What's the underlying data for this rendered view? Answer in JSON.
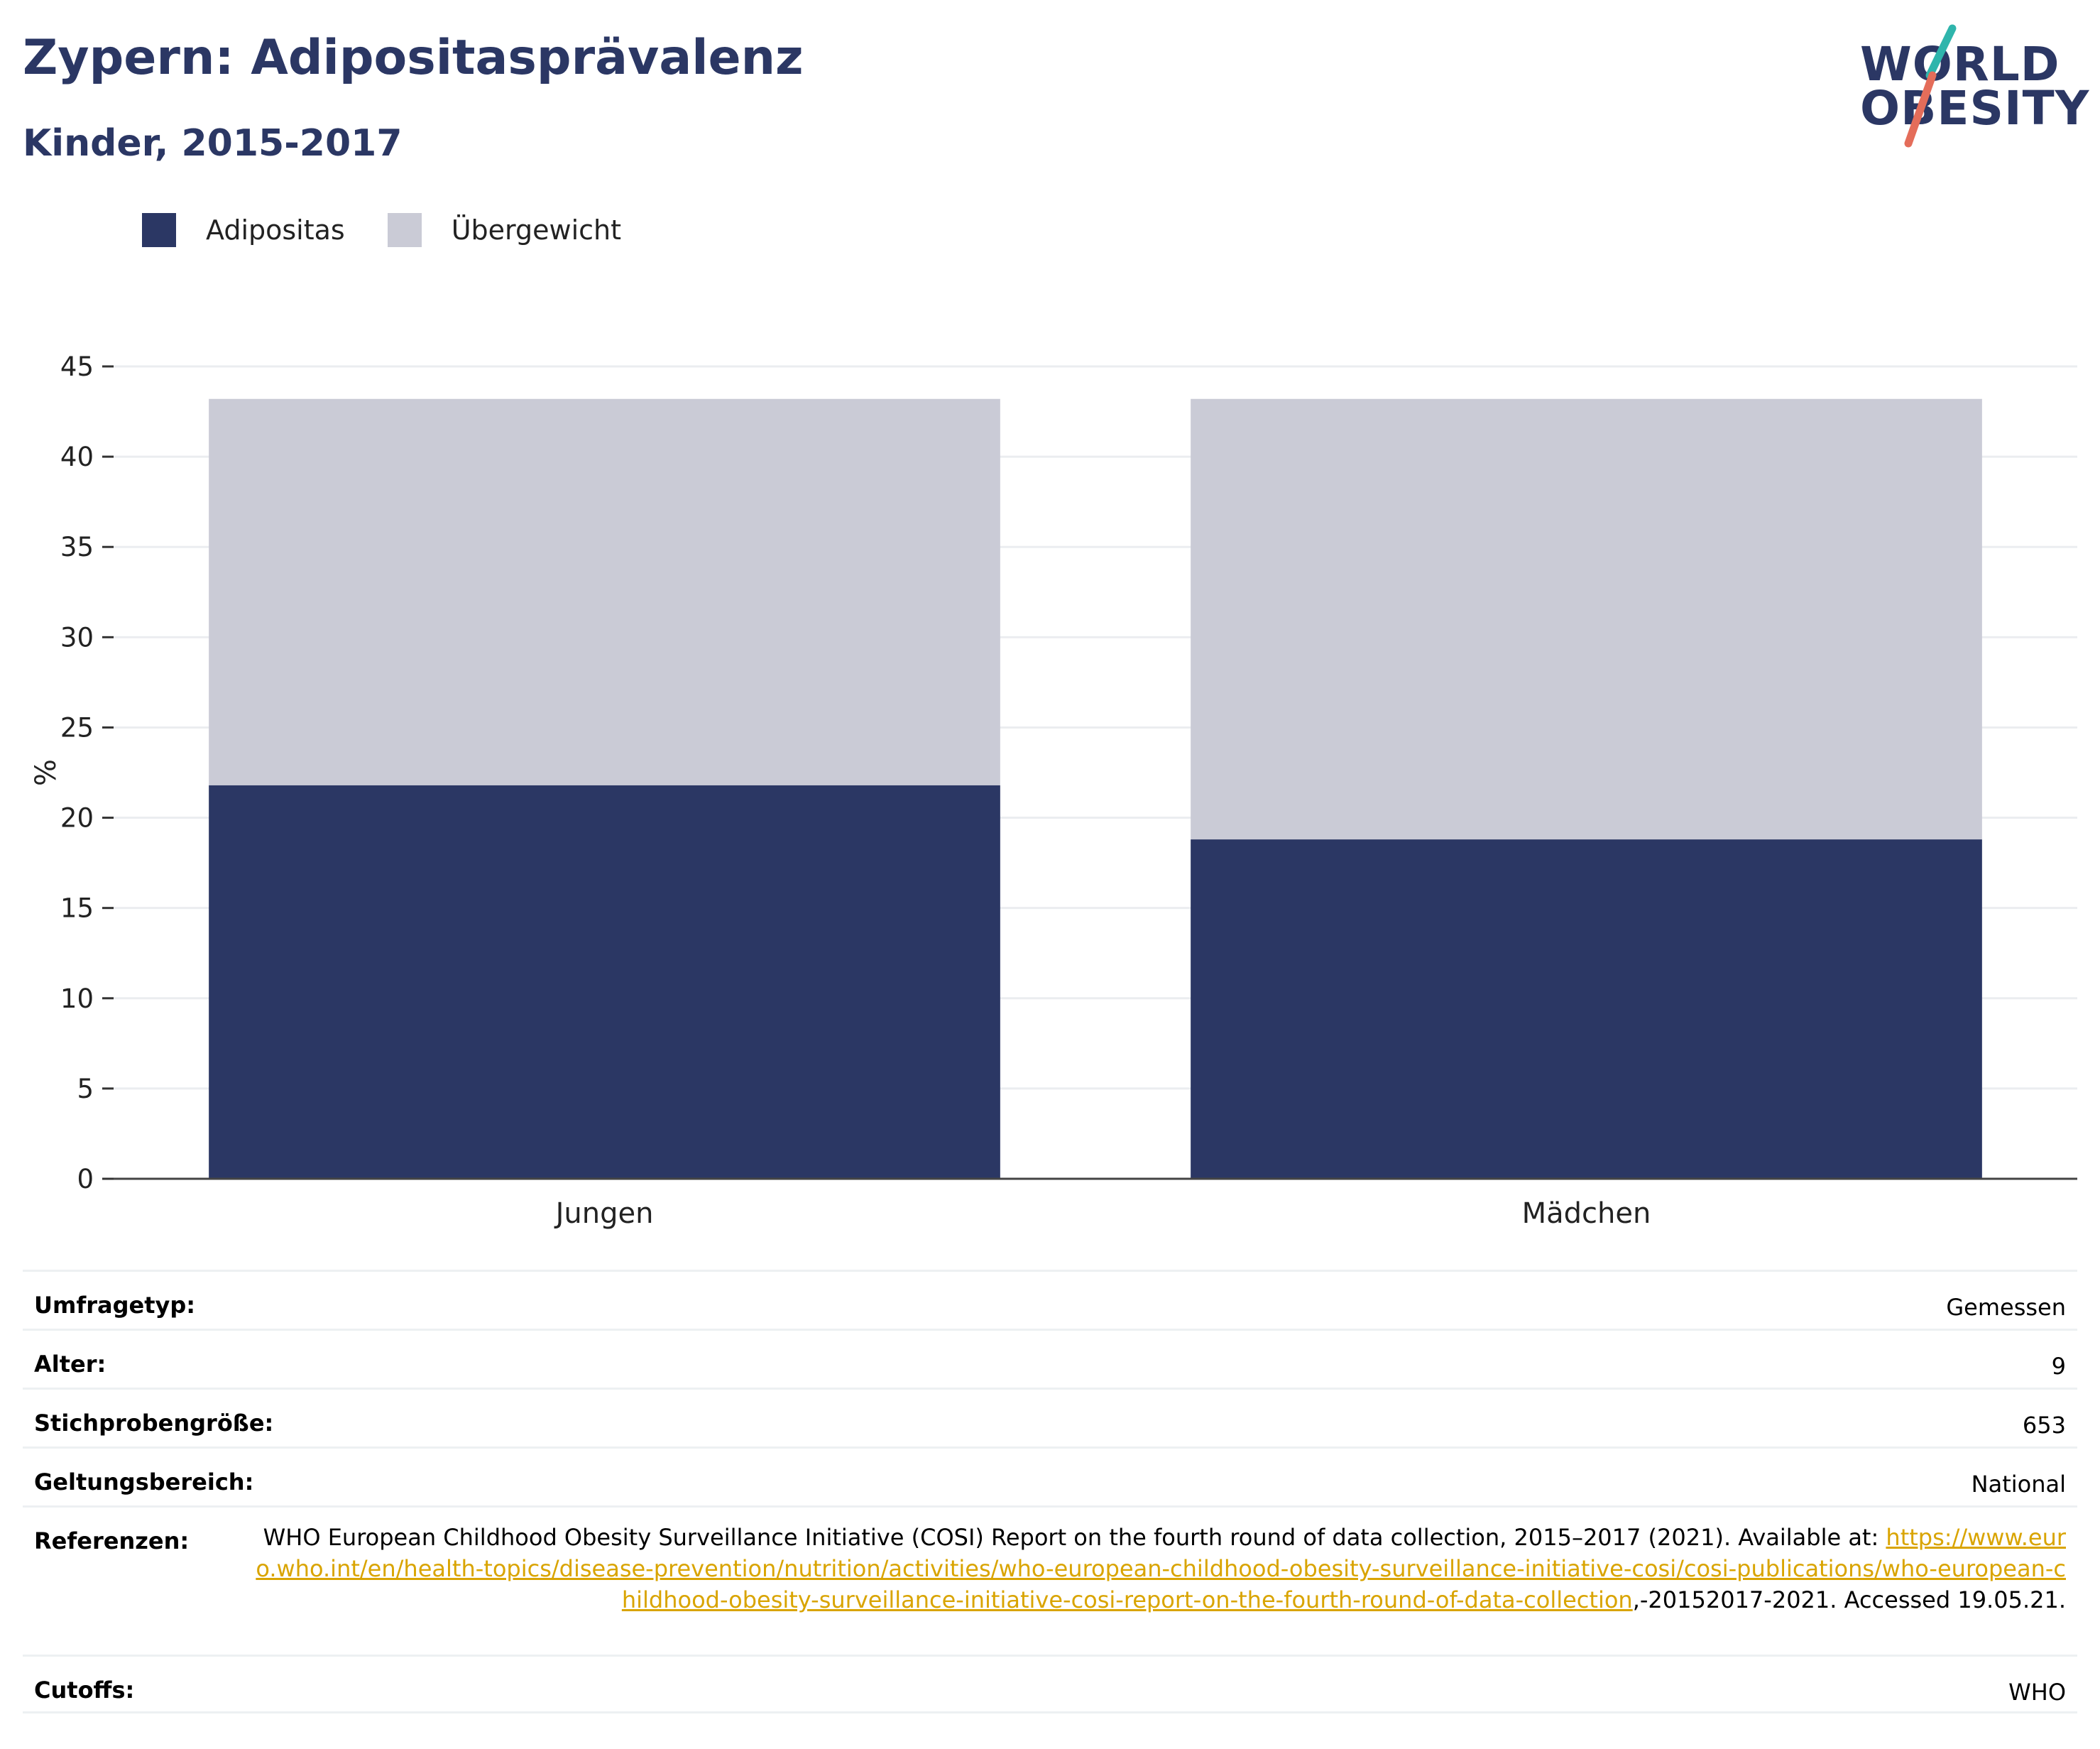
{
  "header": {
    "title": "Zypern: Adipositasprävalenz",
    "subtitle": "Kinder, 2015-2017"
  },
  "logo": {
    "line1": "WORLD",
    "line2": "OBESITY"
  },
  "colors": {
    "obesity": "#2b3764",
    "overweight": "#cacbd6",
    "accent_teal": "#2fb5ac",
    "accent_coral": "#e46d5a",
    "link": "#d9a400"
  },
  "chart_data": {
    "type": "bar",
    "stacked": true,
    "categories": [
      "Jungen",
      "Mädchen"
    ],
    "series": [
      {
        "name": "Adipositas",
        "values": [
          21.8,
          18.8
        ],
        "color": "#2b3764"
      },
      {
        "name": "Übergewicht",
        "values": [
          21.4,
          24.4
        ],
        "color": "#cacbd6"
      }
    ],
    "ylabel": "%",
    "ylim": [
      0,
      45
    ],
    "yticks": [
      0,
      5,
      10,
      15,
      20,
      25,
      30,
      35,
      40,
      45
    ],
    "grid": true,
    "legend": "top-left"
  },
  "meta": {
    "rows": [
      {
        "label": "Umfragetyp:",
        "value": "Gemessen"
      },
      {
        "label": "Alter:",
        "value": "9"
      },
      {
        "label": "Stichprobengröße:",
        "value": "653"
      },
      {
        "label": "Geltungsbereich:",
        "value": "National"
      },
      {
        "label": "Cutoffs:",
        "value": "WHO"
      }
    ],
    "reference": {
      "label": "Referenzen:",
      "text1": "WHO European Childhood Obesity Surveillance Initiative (COSI) Report on the fourth round of data collection, 2015–2017 (2021).",
      "text2": "Available at: ",
      "link": "https://www.euro.who.int/en/health-topics/disease-prevention/nutrition/activities/who-european-childhood-obesity-surveillance-initiative-cosi/cosi-publications/who-european-childhood-obesity-surveillance-initiative-cosi-report-on-the-fourth-round-of-data-collection",
      "text3": ",-20152017-2021. Accessed 19.05.21."
    }
  }
}
